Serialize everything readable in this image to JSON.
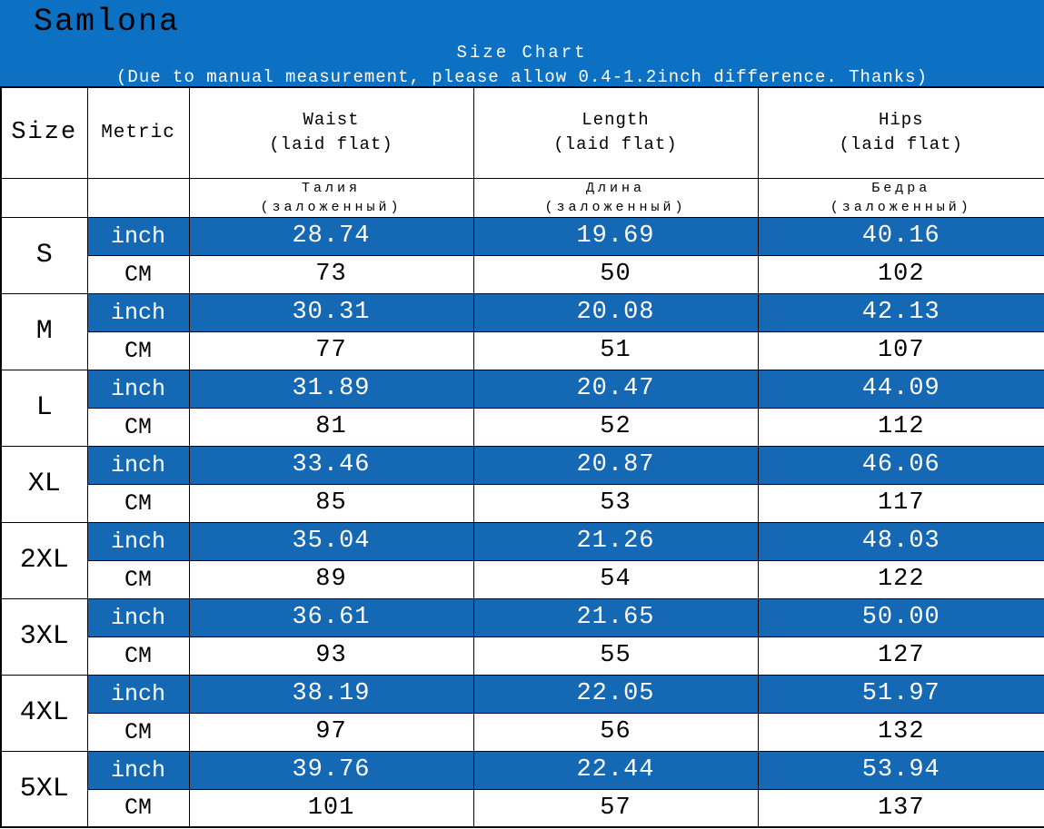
{
  "banner": {
    "brand": "Samlona",
    "title": "Size Chart",
    "note": "(Due to manual measurement, please allow 0.4-1.2inch difference. Thanks)"
  },
  "colors": {
    "banner_blue": "#0c71c3",
    "row_blue": "#1568b4",
    "text_on_blue": "#ffffff",
    "border_black": "#000000",
    "page_white": "#ffffff"
  },
  "table": {
    "header": {
      "size": "Size",
      "metric": "Metric",
      "measures": [
        {
          "en": "Waist",
          "en2": "(laid flat)",
          "ru": "Талия",
          "ru2": "(заложенный)"
        },
        {
          "en": "Length",
          "en2": "(laid flat)",
          "ru": "Длина",
          "ru2": "(заложенный)"
        },
        {
          "en": "Hips",
          "en2": "(laid flat)",
          "ru": "Бедра",
          "ru2": "(заложенный)"
        }
      ]
    },
    "units": {
      "imperial": "inch",
      "metric_unit": "CM"
    },
    "sizes": [
      {
        "size": "S",
        "inch": [
          "28.74",
          "19.69",
          "40.16"
        ],
        "cm": [
          "73",
          "50",
          "102"
        ]
      },
      {
        "size": "M",
        "inch": [
          "30.31",
          "20.08",
          "42.13"
        ],
        "cm": [
          "77",
          "51",
          "107"
        ]
      },
      {
        "size": "L",
        "inch": [
          "31.89",
          "20.47",
          "44.09"
        ],
        "cm": [
          "81",
          "52",
          "112"
        ]
      },
      {
        "size": "XL",
        "inch": [
          "33.46",
          "20.87",
          "46.06"
        ],
        "cm": [
          "85",
          "53",
          "117"
        ]
      },
      {
        "size": "2XL",
        "inch": [
          "35.04",
          "21.26",
          "48.03"
        ],
        "cm": [
          "89",
          "54",
          "122"
        ]
      },
      {
        "size": "3XL",
        "inch": [
          "36.61",
          "21.65",
          "50.00"
        ],
        "cm": [
          "93",
          "55",
          "127"
        ]
      },
      {
        "size": "4XL",
        "inch": [
          "38.19",
          "22.05",
          "51.97"
        ],
        "cm": [
          "97",
          "56",
          "132"
        ]
      },
      {
        "size": "5XL",
        "inch": [
          "39.76",
          "22.44",
          "53.94"
        ],
        "cm": [
          "101",
          "57",
          "137"
        ]
      }
    ]
  },
  "chart_data": {
    "type": "table",
    "title": "Size Chart",
    "subtitle": "(Due to manual measurement, please allow 0.4-1.2inch difference. Thanks)",
    "columns": [
      "Size",
      "Metric",
      "Waist (laid flat) / Талия (заложенный)",
      "Length (laid flat) / Длина (заложенный)",
      "Hips (laid flat) / Бедра (заложенный)"
    ],
    "rows": [
      [
        "S",
        "inch",
        28.74,
        19.69,
        40.16
      ],
      [
        "S",
        "CM",
        73,
        50,
        102
      ],
      [
        "M",
        "inch",
        30.31,
        20.08,
        42.13
      ],
      [
        "M",
        "CM",
        77,
        51,
        107
      ],
      [
        "L",
        "inch",
        31.89,
        20.47,
        44.09
      ],
      [
        "L",
        "CM",
        81,
        52,
        112
      ],
      [
        "XL",
        "inch",
        33.46,
        20.87,
        46.06
      ],
      [
        "XL",
        "CM",
        85,
        53,
        117
      ],
      [
        "2XL",
        "inch",
        35.04,
        21.26,
        48.03
      ],
      [
        "2XL",
        "CM",
        89,
        54,
        122
      ],
      [
        "3XL",
        "inch",
        36.61,
        21.65,
        50.0
      ],
      [
        "3XL",
        "CM",
        93,
        55,
        127
      ],
      [
        "4XL",
        "inch",
        38.19,
        22.05,
        51.97
      ],
      [
        "4XL",
        "CM",
        97,
        56,
        132
      ],
      [
        "5XL",
        "inch",
        39.76,
        22.44,
        53.94
      ],
      [
        "5XL",
        "CM",
        101,
        57,
        137
      ]
    ]
  }
}
